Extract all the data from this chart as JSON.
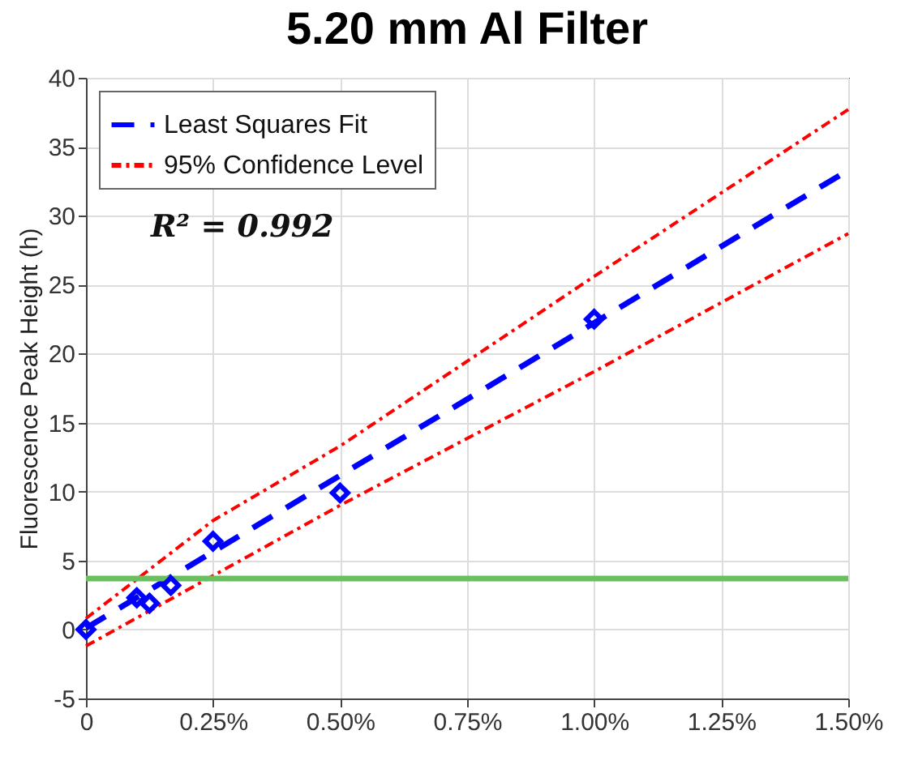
{
  "chart_data": {
    "type": "scatter",
    "title": "5.20 mm Al Filter",
    "ylabel": "Fluorescence Peak Height (h)",
    "annotations": [
      "R² = 0.992"
    ],
    "series": [
      {
        "color": "#0000ff",
        "marker": "diamond",
        "x": [
          0,
          0.1,
          0.125,
          0.167,
          0.25,
          0.5,
          1.0
        ],
        "values": [
          0,
          2.3,
          1.9,
          3.2,
          6.4,
          9.9,
          22.5
        ]
      },
      {
        "type": "line",
        "name": "Least Squares Fit",
        "color": "#0000ff",
        "line_style": "dashed",
        "marker": "none",
        "x": [
          0,
          1.5
        ],
        "values": [
          0.1,
          33.3
        ]
      },
      {
        "type": "line",
        "name": "95% Confidence Level",
        "color": "#ff0000",
        "line_style": "dotted",
        "marker": "none",
        "x": [
          0,
          0.25,
          0.5,
          1.0,
          1.5
        ],
        "values": [
          0.8,
          7.9,
          13.3,
          25.6,
          37.7
        ]
      },
      {
        "type": "line",
        "color": "#ff0000",
        "line_style": "dotted",
        "marker": "none",
        "x": [
          0,
          0.25,
          0.5,
          1.0,
          1.5
        ],
        "values": [
          -1.2,
          3.9,
          9.0,
          18.7,
          28.7
        ]
      }
    ],
    "ref_lines": [
      {
        "axis": "y",
        "value": 3.7,
        "color": "#6abf5e"
      }
    ],
    "xlim": [
      0,
      1.5
    ],
    "xticks": [
      0,
      {
        "value": 0.25,
        "label": "0.25%"
      },
      {
        "value": 0.5,
        "label": "0.50%"
      },
      {
        "value": 0.75,
        "label": "0.75%"
      },
      {
        "value": 1.0,
        "label": "1.00%"
      },
      {
        "value": 1.25,
        "label": "1.25%"
      },
      {
        "value": 1.5,
        "label": "1.50%"
      }
    ],
    "ylim": [
      -5,
      40
    ],
    "yticks": [
      -5,
      0,
      5,
      10,
      15,
      20,
      25,
      30,
      35,
      40
    ],
    "grid": true,
    "legend": "top left"
  }
}
